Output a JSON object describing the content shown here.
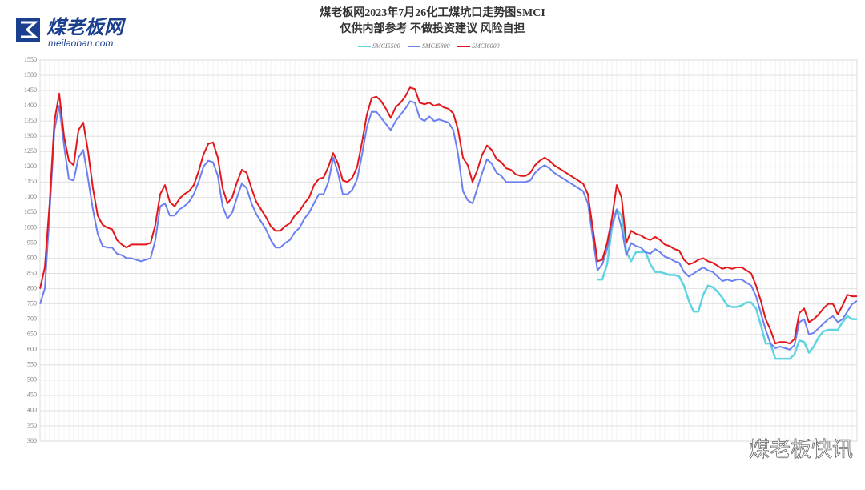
{
  "logo": {
    "name": "煤老板网",
    "url": "meilaoban.com"
  },
  "watermark": "煤老板快讯",
  "chart_data": {
    "type": "line",
    "title": "煤老板网2023年7月26化工煤坑口走势图SMCI",
    "subtitle": "仅供内部参考 不做投资建议 风险自担",
    "categories": [
      null,
      null,
      null,
      null,
      null,
      null,
      null,
      null,
      null,
      null,
      null,
      null,
      null,
      null,
      null,
      null,
      null,
      null,
      null,
      null,
      null,
      null,
      null,
      null,
      null,
      null,
      null,
      null,
      null,
      null,
      null,
      null,
      null,
      null,
      null,
      null,
      null,
      null,
      null,
      null,
      null,
      null,
      null,
      null,
      null,
      null,
      null,
      null,
      null,
      null,
      null,
      null,
      null,
      null,
      null,
      null,
      null,
      null,
      null,
      null,
      null,
      null,
      null,
      null,
      null,
      null,
      null,
      null,
      null,
      null,
      null,
      null,
      null,
      null,
      null,
      null,
      null,
      null,
      null,
      null,
      null,
      null,
      null,
      null,
      null,
      null,
      null,
      null,
      null,
      null,
      null,
      null,
      null,
      null,
      null,
      null,
      null,
      null,
      null,
      null,
      null,
      null,
      null,
      null,
      null,
      null,
      null,
      null,
      null,
      null,
      null,
      null,
      null,
      null,
      null,
      null,
      null,
      null,
      null,
      null,
      null,
      null,
      null,
      null,
      null,
      null,
      null,
      null,
      null,
      null,
      null,
      null,
      null,
      null,
      null,
      null,
      null,
      null,
      null,
      null,
      null,
      null,
      null,
      null,
      null,
      null,
      null,
      null,
      null,
      null,
      null,
      null,
      null,
      null,
      null,
      null,
      null,
      null,
      null,
      null,
      null,
      null,
      null,
      null,
      null,
      null,
      null,
      null,
      null,
      null,
      null
    ],
    "series": [
      {
        "name": "SMCI5500",
        "color": "#5fd3e0",
        "width": 2.5,
        "values": [
          null,
          null,
          null,
          null,
          null,
          null,
          null,
          null,
          null,
          null,
          null,
          null,
          null,
          null,
          null,
          null,
          null,
          null,
          null,
          null,
          null,
          null,
          null,
          null,
          null,
          null,
          null,
          null,
          null,
          null,
          null,
          null,
          null,
          null,
          null,
          null,
          null,
          null,
          null,
          null,
          null,
          null,
          null,
          null,
          null,
          null,
          null,
          null,
          null,
          null,
          null,
          null,
          null,
          null,
          null,
          null,
          null,
          null,
          null,
          null,
          null,
          null,
          null,
          null,
          null,
          null,
          null,
          null,
          null,
          null,
          null,
          null,
          null,
          null,
          null,
          null,
          null,
          null,
          null,
          null,
          null,
          null,
          null,
          null,
          null,
          null,
          null,
          null,
          null,
          null,
          null,
          null,
          null,
          null,
          null,
          null,
          null,
          null,
          null,
          null,
          null,
          null,
          null,
          null,
          null,
          null,
          null,
          null,
          null,
          null,
          null,
          null,
          null,
          null,
          null,
          null,
          830,
          830,
          880,
          1000,
          1060,
          1040,
          920,
          890,
          920,
          920,
          920,
          880,
          855,
          855,
          850,
          845,
          845,
          840,
          810,
          760,
          725,
          725,
          780,
          810,
          805,
          790,
          770,
          745,
          740,
          740,
          745,
          755,
          755,
          735,
          680,
          620,
          620,
          570,
          570,
          570,
          570,
          585,
          630,
          625,
          590,
          610,
          640,
          660,
          665,
          665,
          665,
          690,
          710,
          700,
          700
        ]
      },
      {
        "name": "SMCI5800",
        "color": "#6b7ff0",
        "width": 2,
        "values": [
          750,
          800,
          1050,
          1320,
          1400,
          1270,
          1160,
          1155,
          1230,
          1255,
          1160,
          1060,
          980,
          940,
          935,
          935,
          915,
          910,
          900,
          900,
          895,
          890,
          895,
          900,
          960,
          1070,
          1080,
          1040,
          1040,
          1060,
          1070,
          1085,
          1110,
          1150,
          1200,
          1220,
          1215,
          1170,
          1070,
          1030,
          1050,
          1100,
          1145,
          1130,
          1080,
          1045,
          1020,
          995,
          960,
          935,
          935,
          950,
          960,
          985,
          1000,
          1030,
          1050,
          1080,
          1110,
          1110,
          1150,
          1230,
          1180,
          1110,
          1110,
          1125,
          1160,
          1240,
          1330,
          1380,
          1380,
          1360,
          1340,
          1320,
          1350,
          1370,
          1390,
          1415,
          1410,
          1360,
          1350,
          1365,
          1350,
          1355,
          1350,
          1345,
          1320,
          1240,
          1120,
          1090,
          1080,
          1130,
          1180,
          1225,
          1210,
          1180,
          1170,
          1150,
          1150,
          1150,
          1150,
          1150,
          1155,
          1180,
          1195,
          1205,
          1195,
          1180,
          1170,
          1160,
          1150,
          1140,
          1130,
          1120,
          1080,
          970,
          860,
          880,
          930,
          1010,
          1060,
          1000,
          910,
          950,
          940,
          935,
          920,
          915,
          930,
          920,
          905,
          900,
          890,
          885,
          855,
          840,
          850,
          860,
          870,
          860,
          855,
          840,
          825,
          830,
          825,
          830,
          830,
          820,
          810,
          775,
          720,
          665,
          620,
          605,
          610,
          605,
          600,
          615,
          690,
          700,
          650,
          655,
          670,
          685,
          700,
          710,
          690,
          700,
          725,
          750,
          760
        ]
      },
      {
        "name": "SMCI6000",
        "color": "#e3161b",
        "width": 2,
        "values": [
          800,
          870,
          1080,
          1350,
          1440,
          1300,
          1220,
          1205,
          1320,
          1345,
          1250,
          1130,
          1040,
          1010,
          1000,
          995,
          960,
          945,
          935,
          945,
          945,
          945,
          945,
          950,
          1010,
          1110,
          1140,
          1085,
          1070,
          1095,
          1110,
          1120,
          1140,
          1185,
          1240,
          1275,
          1280,
          1230,
          1130,
          1080,
          1100,
          1150,
          1190,
          1180,
          1130,
          1085,
          1060,
          1035,
          1005,
          990,
          990,
          1005,
          1015,
          1040,
          1055,
          1080,
          1100,
          1140,
          1160,
          1165,
          1200,
          1245,
          1210,
          1155,
          1150,
          1165,
          1200,
          1280,
          1370,
          1425,
          1430,
          1415,
          1390,
          1360,
          1395,
          1410,
          1430,
          1460,
          1455,
          1410,
          1405,
          1410,
          1400,
          1405,
          1395,
          1390,
          1375,
          1320,
          1230,
          1205,
          1150,
          1190,
          1240,
          1270,
          1255,
          1225,
          1215,
          1195,
          1190,
          1175,
          1170,
          1170,
          1180,
          1205,
          1220,
          1230,
          1220,
          1205,
          1195,
          1185,
          1175,
          1165,
          1155,
          1145,
          1110,
          1000,
          890,
          895,
          950,
          1030,
          1140,
          1100,
          950,
          990,
          980,
          975,
          965,
          960,
          970,
          960,
          945,
          940,
          930,
          925,
          895,
          880,
          885,
          895,
          900,
          890,
          885,
          875,
          865,
          870,
          865,
          870,
          870,
          860,
          850,
          810,
          760,
          700,
          665,
          620,
          625,
          625,
          620,
          635,
          720,
          735,
          690,
          700,
          715,
          735,
          750,
          750,
          715,
          745,
          780,
          775,
          775
        ]
      }
    ],
    "ylim": [
      300,
      1550
    ],
    "yticks": [
      300,
      350,
      400,
      450,
      500,
      550,
      600,
      650,
      700,
      750,
      800,
      850,
      900,
      950,
      1000,
      1050,
      1100,
      1150,
      1200,
      1250,
      1300,
      1350,
      1400,
      1450,
      1500,
      1550
    ],
    "grid": true,
    "legend": "top"
  }
}
